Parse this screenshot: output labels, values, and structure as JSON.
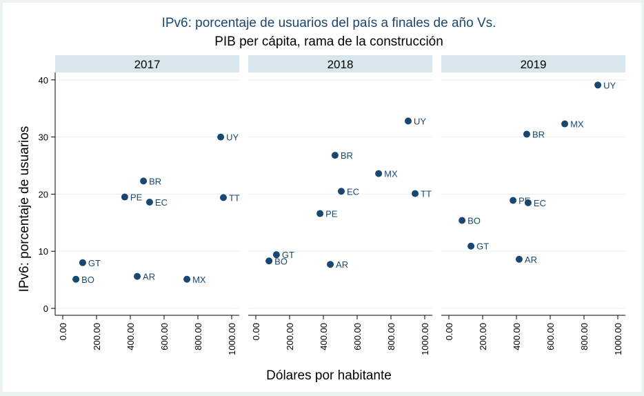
{
  "chart_data": {
    "type": "scatter",
    "title": "IPv6: porcentaje de usuarios del país a finales de año Vs.",
    "subtitle": "PIB per cápita, rama de la construcción",
    "xlabel": "Dólares por habitante",
    "ylabel": "IPv6: porcentaje de usuarios",
    "xlim": [
      0,
      1000
    ],
    "ylim": [
      0,
      40
    ],
    "x_ticks": [
      "0.00",
      "200.00",
      "400.00",
      "600.00",
      "800.00",
      "1000.00"
    ],
    "x_tick_values": [
      0,
      200,
      400,
      600,
      800,
      1000
    ],
    "y_ticks": [
      "0",
      "10",
      "20",
      "30",
      "40"
    ],
    "y_tick_values": [
      0,
      10,
      20,
      30,
      40
    ],
    "grid": true,
    "marker_color": "#1a476f",
    "header_color": "#d9e6eb",
    "panels": [
      {
        "name": "2017",
        "points": [
          {
            "label": "UY",
            "x": 935,
            "y": 30.0
          },
          {
            "label": "TT",
            "x": 951,
            "y": 19.4
          },
          {
            "label": "BR",
            "x": 478,
            "y": 22.3
          },
          {
            "label": "PE",
            "x": 367,
            "y": 19.5
          },
          {
            "label": "EC",
            "x": 514,
            "y": 18.6
          },
          {
            "label": "GT",
            "x": 118,
            "y": 8.0
          },
          {
            "label": "BO",
            "x": 78,
            "y": 5.1
          },
          {
            "label": "AR",
            "x": 441,
            "y": 5.6
          },
          {
            "label": "MX",
            "x": 735,
            "y": 5.1
          }
        ]
      },
      {
        "name": "2018",
        "points": [
          {
            "label": "UY",
            "x": 902,
            "y": 32.8
          },
          {
            "label": "BR",
            "x": 469,
            "y": 26.8
          },
          {
            "label": "MX",
            "x": 727,
            "y": 23.6
          },
          {
            "label": "EC",
            "x": 506,
            "y": 20.5
          },
          {
            "label": "TT",
            "x": 943,
            "y": 20.1
          },
          {
            "label": "PE",
            "x": 380,
            "y": 16.6
          },
          {
            "label": "GT",
            "x": 122,
            "y": 9.4
          },
          {
            "label": "BO",
            "x": 78,
            "y": 8.3
          },
          {
            "label": "AR",
            "x": 441,
            "y": 7.7
          }
        ]
      },
      {
        "name": "2019",
        "points": [
          {
            "label": "UY",
            "x": 882,
            "y": 39.1
          },
          {
            "label": "MX",
            "x": 686,
            "y": 32.3
          },
          {
            "label": "BR",
            "x": 461,
            "y": 30.5
          },
          {
            "label": "PE",
            "x": 380,
            "y": 18.9
          },
          {
            "label": "EC",
            "x": 469,
            "y": 18.5
          },
          {
            "label": "BO",
            "x": 78,
            "y": 15.4
          },
          {
            "label": "GT",
            "x": 131,
            "y": 10.9
          },
          {
            "label": "AR",
            "x": 416,
            "y": 8.6
          }
        ]
      }
    ]
  }
}
